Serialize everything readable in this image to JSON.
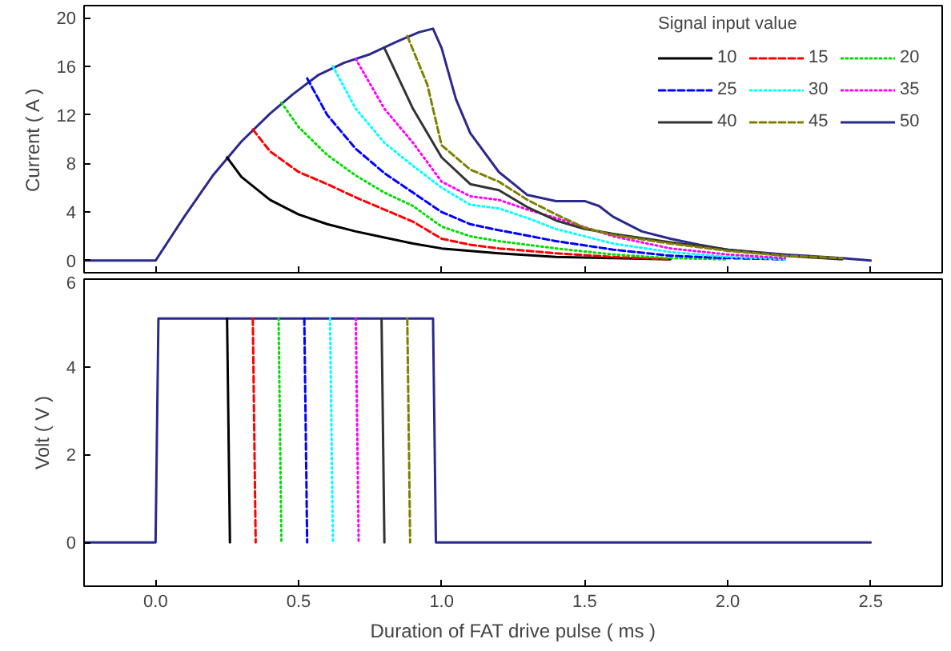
{
  "chart_data": [
    {
      "type": "line",
      "ylabel": "Current ( A )",
      "legend_title": "Signal input value",
      "legend": "top right",
      "grid": false,
      "tick_labels": "y",
      "xlim": [
        -0.25,
        2.75
      ],
      "xticks": [
        0,
        0.5,
        1,
        1.5,
        2,
        2.5
      ],
      "ylim": [
        -1,
        21
      ],
      "yticks": [
        0,
        4,
        8,
        12,
        16,
        20
      ],
      "series": [
        {
          "name": "50",
          "color": "#2a2a8c",
          "line_style": "solid",
          "x": [
            -0.25,
            0,
            0.05,
            0.1,
            0.15,
            0.2,
            0.3,
            0.4,
            0.48,
            0.57,
            0.66,
            0.75,
            0.84,
            0.92,
            0.97,
            1.0,
            1.05,
            1.1,
            1.2,
            1.3,
            1.4,
            1.5,
            1.55,
            1.6,
            1.7,
            1.8,
            1.9,
            2.0,
            2.2,
            2.4,
            2.5
          ],
          "values": [
            0,
            0,
            1.8,
            3.6,
            5.3,
            7.0,
            9.8,
            12.1,
            13.7,
            15.3,
            16.3,
            17.0,
            18.0,
            18.8,
            19.1,
            17.5,
            13.3,
            10.5,
            7.3,
            5.4,
            4.9,
            4.9,
            4.5,
            3.6,
            2.4,
            1.8,
            1.3,
            0.9,
            0.5,
            0.2,
            0
          ]
        },
        {
          "name": "10",
          "color": "#000000",
          "line_style": "solid",
          "x": [
            0.25,
            0.3,
            0.4,
            0.5,
            0.6,
            0.7,
            0.8,
            0.9,
            1.0,
            1.2,
            1.4,
            1.6,
            1.8
          ],
          "values": [
            8.5,
            6.9,
            5.0,
            3.8,
            3.0,
            2.4,
            1.9,
            1.4,
            1.0,
            0.6,
            0.3,
            0.2,
            0.1
          ]
        },
        {
          "name": "15",
          "color": "#ff0000",
          "line_style": "dashed",
          "x": [
            0.34,
            0.4,
            0.5,
            0.6,
            0.7,
            0.8,
            0.9,
            1.0,
            1.1,
            1.2,
            1.4,
            1.6,
            1.8
          ],
          "values": [
            10.8,
            9.0,
            7.3,
            6.3,
            5.2,
            4.2,
            3.2,
            1.8,
            1.3,
            1.0,
            0.6,
            0.3,
            0.1
          ]
        },
        {
          "name": "20",
          "color": "#00dd00",
          "line_style": "dotted",
          "x": [
            0.44,
            0.5,
            0.6,
            0.7,
            0.8,
            0.9,
            1.0,
            1.1,
            1.2,
            1.4,
            1.6,
            1.8,
            2.0
          ],
          "values": [
            13.0,
            11.0,
            8.7,
            7.0,
            5.6,
            4.5,
            2.8,
            2.0,
            1.6,
            1.0,
            0.5,
            0.2,
            0.1
          ]
        },
        {
          "name": "25",
          "color": "#0000ff",
          "line_style": "dashed",
          "x": [
            0.53,
            0.6,
            0.7,
            0.8,
            0.9,
            1.0,
            1.1,
            1.2,
            1.4,
            1.6,
            1.8,
            2.0,
            2.2
          ],
          "values": [
            15.0,
            12.0,
            9.2,
            7.2,
            5.6,
            4.0,
            3.0,
            2.5,
            1.6,
            0.9,
            0.4,
            0.2,
            0.1
          ]
        },
        {
          "name": "30",
          "color": "#00ffff",
          "line_style": "dotted",
          "x": [
            0.62,
            0.7,
            0.8,
            0.9,
            1.0,
            1.1,
            1.2,
            1.3,
            1.4,
            1.6,
            1.8,
            2.0,
            2.2
          ],
          "values": [
            16.0,
            12.5,
            9.7,
            7.8,
            6.0,
            4.6,
            4.3,
            3.5,
            2.6,
            1.4,
            0.7,
            0.3,
            0.1
          ]
        },
        {
          "name": "35",
          "color": "#ff00ff",
          "line_style": "dotted",
          "x": [
            0.7,
            0.8,
            0.9,
            1.0,
            1.1,
            1.2,
            1.3,
            1.4,
            1.6,
            1.8,
            2.0,
            2.2
          ],
          "values": [
            16.6,
            12.5,
            9.7,
            6.5,
            5.3,
            5.0,
            4.2,
            3.5,
            2.0,
            1.0,
            0.5,
            0.2
          ]
        },
        {
          "name": "40",
          "color": "#333333",
          "line_style": "solid",
          "x": [
            0.8,
            0.9,
            1.0,
            1.1,
            1.2,
            1.3,
            1.4,
            1.5,
            1.6,
            1.8,
            2.0,
            2.2,
            2.4
          ],
          "values": [
            17.5,
            12.5,
            8.5,
            6.3,
            5.8,
            4.4,
            3.3,
            2.6,
            2.2,
            1.5,
            0.9,
            0.4,
            0.1
          ]
        },
        {
          "name": "45",
          "color": "#808000",
          "line_style": "dashed",
          "x": [
            0.88,
            0.95,
            1.0,
            1.1,
            1.2,
            1.3,
            1.4,
            1.5,
            1.6,
            1.8,
            2.0,
            2.2,
            2.4
          ],
          "values": [
            18.5,
            14.5,
            9.5,
            7.5,
            6.5,
            5.0,
            3.8,
            2.7,
            2.1,
            1.4,
            0.8,
            0.4,
            0.2
          ]
        }
      ]
    },
    {
      "type": "line",
      "xlabel": "Duration of FAT drive pulse ( ms )",
      "ylabel": "Volt ( V )",
      "grid": false,
      "xlim": [
        -0.25,
        2.75
      ],
      "xticks": [
        {
          "value": 0,
          "label": "0.0"
        },
        {
          "value": 0.5,
          "label": "0.5"
        },
        {
          "value": 1,
          "label": "1.0"
        },
        {
          "value": 1.5,
          "label": "1.5"
        },
        {
          "value": 2,
          "label": "2.0"
        },
        {
          "value": 2.5,
          "label": "2.5"
        }
      ],
      "ylim": [
        -1,
        6
      ],
      "yticks": [
        0,
        2,
        4,
        6
      ],
      "series": [
        {
          "color": "#2a2a8c",
          "line_style": "solid",
          "x": [
            -0.25,
            0,
            0.01,
            0.97,
            0.98,
            2.5
          ],
          "values": [
            0,
            0,
            5.1,
            5.1,
            0,
            0
          ]
        },
        {
          "color": "#000000",
          "line_style": "solid",
          "x": [
            0.25,
            0.26
          ],
          "values": [
            5.1,
            0
          ]
        },
        {
          "color": "#ff0000",
          "line_style": "dashed",
          "x": [
            0.34,
            0.35
          ],
          "values": [
            5.1,
            0
          ]
        },
        {
          "color": "#00dd00",
          "line_style": "dotted",
          "x": [
            0.43,
            0.44
          ],
          "values": [
            5.1,
            0
          ]
        },
        {
          "color": "#0000ff",
          "line_style": "dashed",
          "x": [
            0.52,
            0.53
          ],
          "values": [
            5.1,
            0
          ]
        },
        {
          "color": "#00ffff",
          "line_style": "dotted",
          "x": [
            0.61,
            0.62
          ],
          "values": [
            5.1,
            0
          ]
        },
        {
          "color": "#ff00ff",
          "line_style": "dotted",
          "x": [
            0.7,
            0.71
          ],
          "values": [
            5.1,
            0
          ]
        },
        {
          "color": "#333333",
          "line_style": "solid",
          "x": [
            0.79,
            0.8
          ],
          "values": [
            5.1,
            0
          ]
        },
        {
          "color": "#808000",
          "line_style": "dashed",
          "x": [
            0.88,
            0.89
          ],
          "values": [
            5.1,
            0
          ]
        }
      ]
    }
  ]
}
